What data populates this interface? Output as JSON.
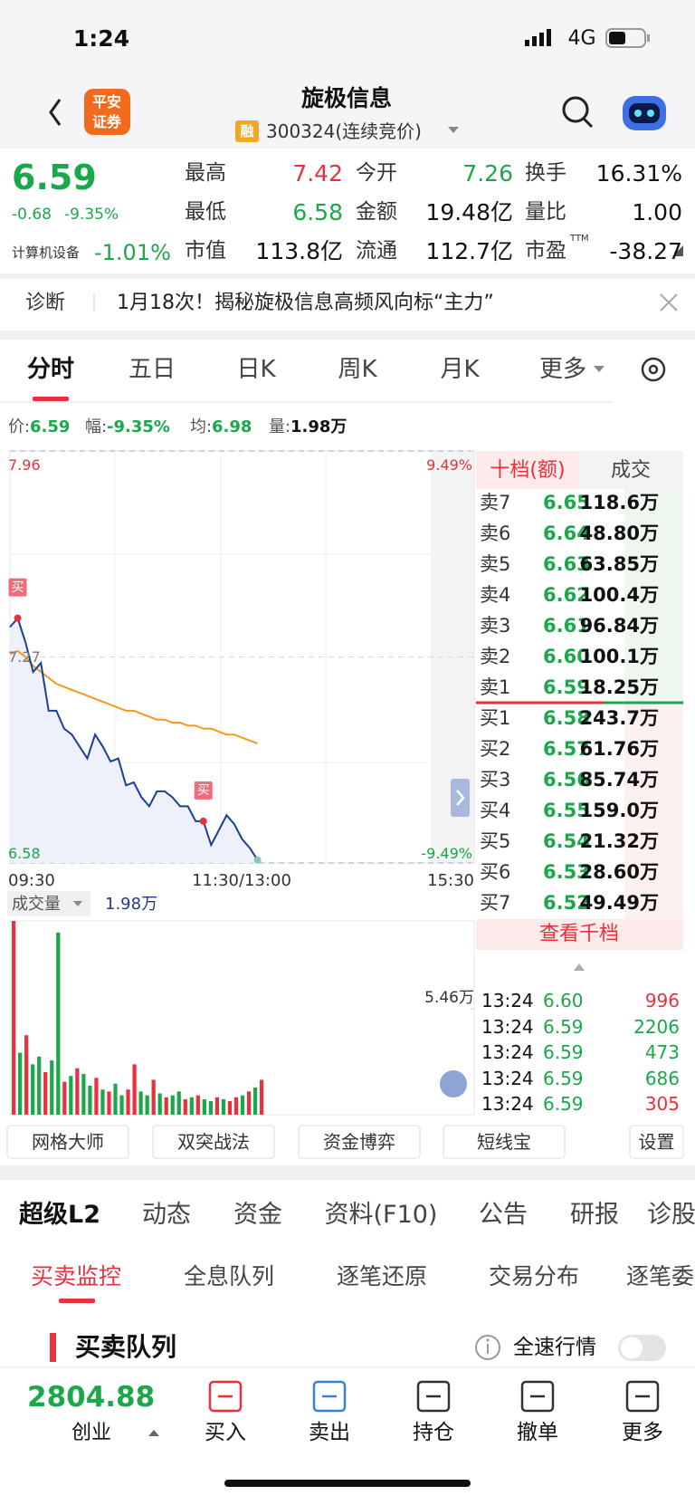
{
  "status_bar": {
    "time": "1:24",
    "network": "4G"
  },
  "header": {
    "logo": [
      "平安",
      "证券"
    ],
    "title": "旋极信息",
    "badge": "融",
    "code": "300324(连续竞价)"
  },
  "quote": {
    "price": "6.59",
    "change": "-0.68",
    "change_pct": "-9.35%",
    "sector": "计算机设备",
    "sector_change": "-1.01%",
    "stats": [
      {
        "label": "最高",
        "value": "7.42",
        "color": "#e8313d"
      },
      {
        "label": "今开",
        "value": "7.26",
        "color": "#1aa84a"
      },
      {
        "label": "换手",
        "value": "16.31%",
        "color": "#111111"
      },
      {
        "label": "最低",
        "value": "6.58",
        "color": "#1aa84a"
      },
      {
        "label": "金额",
        "value": "19.48亿",
        "color": "#111111"
      },
      {
        "label": "量比",
        "value": "1.00",
        "color": "#111111"
      },
      {
        "label": "市值",
        "value": "113.8亿",
        "color": "#111111"
      },
      {
        "label": "流通",
        "value": "112.7亿",
        "color": "#111111"
      },
      {
        "label": "市盈",
        "value": "-38.27",
        "color": "#111111"
      }
    ],
    "pe_suffix": "TTM"
  },
  "news": {
    "tag": "诊断",
    "text": "1月18次！揭秘旋极信息高频风向标“主力”"
  },
  "chart_tabs": [
    "分时",
    "五日",
    "日K",
    "周K",
    "月K",
    "更多"
  ],
  "info_bar": [
    {
      "label": "价:",
      "value": "6.59"
    },
    {
      "label": "幅:",
      "value": "-9.35%"
    },
    {
      "label": "均:",
      "value": "6.98"
    },
    {
      "label": "量:",
      "value": "1.98万"
    }
  ],
  "chart_data": [
    {
      "type": "line",
      "ylim": [
        6.58,
        7.96
      ],
      "yticks": [
        6.58,
        7.27,
        7.96
      ],
      "y2lim": [
        -9.49,
        9.49
      ],
      "y2ticks": [
        {
          "value": -9.49,
          "label": "-9.49%"
        },
        {
          "value": 9.49,
          "label": "9.49%"
        }
      ],
      "x_labels": [
        "09:30",
        "11:30/13:00",
        "15:30"
      ],
      "signal_label": "买",
      "series": [
        {
          "name": "价",
          "color": "#1c3f94",
          "values": [
            7.37,
            7.4,
            7.32,
            7.22,
            7.25,
            7.09,
            7.09,
            7.03,
            7.01,
            6.97,
            6.93,
            7.01,
            6.97,
            6.92,
            6.93,
            6.84,
            6.85,
            6.8,
            6.77,
            6.82,
            6.82,
            6.8,
            6.77,
            6.77,
            6.72,
            6.72,
            6.64,
            6.69,
            6.74,
            6.71,
            6.66,
            6.63,
            6.59
          ]
        },
        {
          "name": "均",
          "color": "#f39a1e",
          "values": [
            7.28,
            7.29,
            7.27,
            7.24,
            7.22,
            7.2,
            7.18,
            7.17,
            7.16,
            7.15,
            7.14,
            7.13,
            7.12,
            7.11,
            7.1,
            7.09,
            7.09,
            7.08,
            7.07,
            7.06,
            7.06,
            7.05,
            7.05,
            7.04,
            7.04,
            7.03,
            7.03,
            7.02,
            7.01,
            7.01,
            7.0,
            6.99,
            6.98
          ]
        }
      ]
    },
    {
      "type": "bar",
      "label": "成交量",
      "current": "1.98万",
      "ylim": [
        0,
        10
      ],
      "yticks": [
        {
          "value": 5.46,
          "label": "5.46万"
        }
      ],
      "values": [
        10,
        3.2,
        4.1,
        2.6,
        3.0,
        2.2,
        2.8,
        9.4,
        1.7,
        2.0,
        2.4,
        2.1,
        1.5,
        1.9,
        1.3,
        1.2,
        1.6,
        1.0,
        1.3,
        2.6,
        1.2,
        1.0,
        1.8,
        1.1,
        0.9,
        1.0,
        1.2,
        0.8,
        0.9,
        1.0,
        0.8,
        0.7,
        0.9,
        0.8,
        0.7,
        0.9,
        1.0,
        1.2,
        1.4,
        1.8
      ],
      "colors": [
        "#e8313d",
        "#1aa84a",
        "#e8313d",
        "#1aa84a",
        "#1aa84a",
        "#e8313d",
        "#1aa84a",
        "#1aa84a",
        "#e8313d",
        "#1aa84a",
        "#e8313d",
        "#1aa84a",
        "#1aa84a",
        "#e8313d",
        "#1aa84a",
        "#e8313d",
        "#1aa84a",
        "#1aa84a",
        "#e8313d",
        "#e8313d",
        "#1aa84a",
        "#1aa84a",
        "#e8313d",
        "#1aa84a",
        "#e8313d",
        "#1aa84a",
        "#1aa84a",
        "#e8313d",
        "#1aa84a",
        "#e8313d",
        "#1aa84a",
        "#1aa84a",
        "#e8313d",
        "#1aa84a",
        "#e8313d",
        "#e8313d",
        "#1aa84a",
        "#e8313d",
        "#1aa84a",
        "#e8313d"
      ]
    }
  ],
  "order_book": {
    "title": "十档(额)",
    "tab2": "成交",
    "asks": [
      {
        "label": "卖7",
        "price": "6.65",
        "volume": "118.6万"
      },
      {
        "label": "卖6",
        "price": "6.64",
        "volume": "48.80万"
      },
      {
        "label": "卖5",
        "price": "6.63",
        "volume": "63.85万"
      },
      {
        "label": "卖4",
        "price": "6.62",
        "volume": "100.4万"
      },
      {
        "label": "卖3",
        "price": "6.61",
        "volume": "96.84万"
      },
      {
        "label": "卖2",
        "price": "6.60",
        "volume": "100.1万"
      },
      {
        "label": "卖1",
        "price": "6.59",
        "volume": "18.25万"
      }
    ],
    "bids": [
      {
        "label": "买1",
        "price": "6.58",
        "volume": "243.7万"
      },
      {
        "label": "买2",
        "price": "6.57",
        "volume": "61.76万"
      },
      {
        "label": "买3",
        "price": "6.56",
        "volume": "85.74万"
      },
      {
        "label": "买4",
        "price": "6.55",
        "volume": "159.0万"
      },
      {
        "label": "买5",
        "price": "6.54",
        "volume": "21.32万"
      },
      {
        "label": "买6",
        "price": "6.53",
        "volume": "28.60万"
      },
      {
        "label": "买7",
        "price": "6.52",
        "volume": "49.49万"
      }
    ],
    "more": "查看千档",
    "trades": [
      {
        "time": "13:24",
        "price": "6.60",
        "volume": "996",
        "color": "#e8313d"
      },
      {
        "time": "13:24",
        "price": "6.59",
        "volume": "2206",
        "color": "#1aa84a"
      },
      {
        "time": "13:24",
        "price": "6.59",
        "volume": "473",
        "color": "#1aa84a"
      },
      {
        "time": "13:24",
        "price": "6.59",
        "volume": "686",
        "color": "#1aa84a"
      },
      {
        "time": "13:24",
        "price": "6.59",
        "volume": "305",
        "color": "#e8313d"
      }
    ]
  },
  "tools": [
    "网格大师",
    "双突战法",
    "资金博弈",
    "短线宝",
    "设置"
  ],
  "detail_tabs": [
    "超级L2",
    "动态",
    "资金",
    "资料(F10)",
    "公告",
    "研报",
    "诊股"
  ],
  "sub_tabs": [
    "买卖监控",
    "全息队列",
    "逐笔还原",
    "交易分布",
    "逐笔委托"
  ],
  "section": {
    "title": "买卖队列",
    "toggle_label": "全速行情"
  },
  "bottom_bar": {
    "index_value": "2804.88",
    "index_name": "创业",
    "actions": [
      "买入",
      "卖出",
      "持仓",
      "撤单",
      "更多"
    ]
  }
}
